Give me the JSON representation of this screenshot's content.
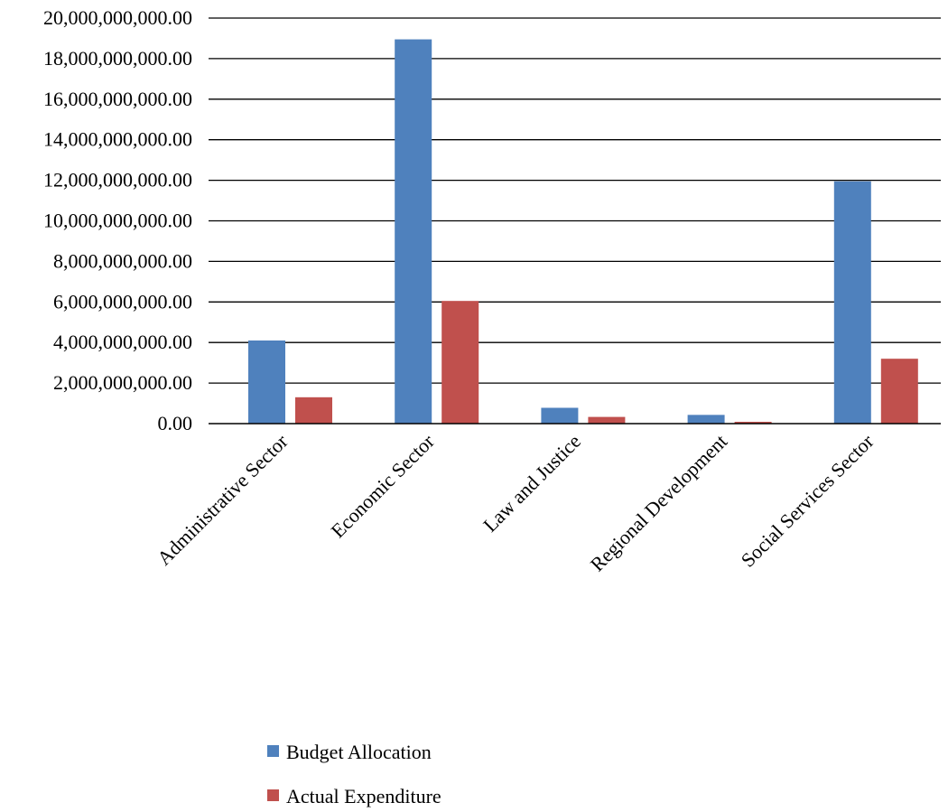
{
  "chart_data": {
    "type": "bar",
    "categories": [
      "Administrative Sector",
      "Economic Sector",
      "Law and Justice",
      "Regional Development",
      "Social Services Sector"
    ],
    "series": [
      {
        "name": "Budget Allocation",
        "color": "#4F81BD",
        "values": [
          4100000000,
          18950000000,
          780000000,
          430000000,
          11950000000
        ]
      },
      {
        "name": "Actual Expenditure",
        "color": "#C0504D",
        "values": [
          1300000000,
          6050000000,
          330000000,
          90000000,
          3200000000
        ]
      }
    ],
    "yticks": [
      "0.00",
      "2,000,000,000.00",
      "4,000,000,000.00",
      "6,000,000,000.00",
      "8,000,000,000.00",
      "10,000,000,000.00",
      "12,000,000,000.00",
      "14,000,000,000.00",
      "16,000,000,000.00",
      "18,000,000,000.00",
      "20,000,000,000.00"
    ],
    "ylim": [
      0,
      20000000000
    ],
    "grid": true,
    "legend_position": "bottom"
  }
}
